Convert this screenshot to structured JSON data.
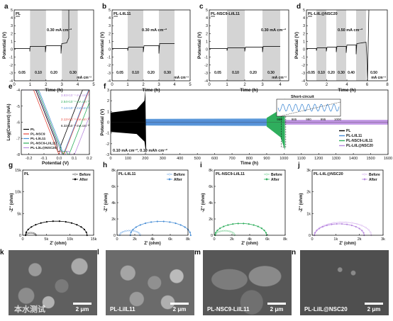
{
  "panels": {
    "a": {
      "letter": "a",
      "tag": "PL",
      "rate": "0.30 mA cm⁻²",
      "rates": [
        "0.05",
        "0.10",
        "0.20",
        "0.30"
      ],
      "unit": "mA cm⁻²",
      "xticks": [
        "0",
        "1",
        "2",
        "3",
        "4",
        "5"
      ]
    },
    "b": {
      "letter": "b",
      "tag": "PL-LiIL11",
      "rate": "0.30 mA cm⁻²",
      "rates": [
        "0.05",
        "0.10",
        "0.20",
        "0.30"
      ],
      "unit": "mA cm⁻²",
      "xticks": [
        "0",
        "1",
        "2",
        "3",
        "4",
        "5"
      ]
    },
    "c": {
      "letter": "c",
      "tag": "PL-NSC9-LiIL11",
      "rate": "0.30 mA cm⁻²",
      "rates": [
        "0.05",
        "0.10",
        "0.20",
        "0.30"
      ],
      "unit": "mA cm⁻²",
      "xticks": [
        "0",
        "1",
        "2",
        "3",
        "4"
      ]
    },
    "d": {
      "letter": "d",
      "tag": "PL-LiIL@NSC20",
      "rate": "0.50 mA cm⁻²",
      "rates": [
        "0.05",
        "0.10",
        "0.20",
        "0.30",
        "0.40",
        "0.50"
      ],
      "unit": "mA cm⁻²",
      "xticks": [
        "0",
        "2",
        "4",
        "6",
        "8"
      ]
    },
    "e": {
      "letter": "e",
      "legend": [
        "PL",
        "PL-NSC9",
        "PL-LiIL11",
        "PL-NSC9-LiIL11",
        "PL-LiIL@NSC20"
      ],
      "annotations": [
        "3.93×10⁻⁴ mA cm⁻²",
        "2.54×10⁻⁴ mA cm⁻²",
        "7.14×10⁻⁴ mA cm⁻²",
        "2.12×10⁻⁴ mA cm⁻²",
        "6.32×10⁻⁴ mA cm⁻²"
      ]
    },
    "f": {
      "letter": "f",
      "legend": [
        "PL",
        "PL-LiIL11",
        "PL-NSC9-LiIL11",
        "PL-LiIL@NSC20"
      ],
      "inset_title": "Short-circuit",
      "inset_xticks": [
        "980",
        "985",
        "990",
        "995",
        "1000"
      ],
      "note": "0.10 mA cm⁻², 0.10 mAh cm⁻²"
    },
    "g": {
      "letter": "g",
      "tag": "PL",
      "legend": [
        "Before",
        "After"
      ]
    },
    "h": {
      "letter": "h",
      "tag": "PL-LiIL11",
      "legend": [
        "Before",
        "After"
      ]
    },
    "i": {
      "letter": "i",
      "tag": "PL-NSC9-LiIL11",
      "legend": [
        "Before",
        "After"
      ]
    },
    "j": {
      "letter": "j",
      "tag": "PL-LiIL@NSC20",
      "legend": [
        "Before",
        "After"
      ]
    }
  },
  "sem": [
    {
      "letter": "k",
      "label": "",
      "scale": "2 μm"
    },
    {
      "letter": "l",
      "label": "PL-LiIL11",
      "scale": "2 μm"
    },
    {
      "letter": "m",
      "label": "PL-NSC9-LiIL11",
      "scale": "2 μm"
    },
    {
      "letter": "n",
      "label": "PL-LiIL@NSC20",
      "scale": "2 μm"
    }
  ],
  "watermark": "本水测试",
  "chart_data": [
    {
      "id": "a",
      "type": "line",
      "title": "PL",
      "xlabel": "Time (h)",
      "ylabel": "Potential (V)",
      "xlim": [
        0,
        5
      ],
      "ylim": [
        -4,
        5
      ],
      "yticks": [
        -4,
        -3,
        -2,
        -1,
        0,
        1,
        2,
        3,
        4,
        5
      ],
      "series": [
        {
          "name": "PL",
          "x": [
            0,
            1,
            1,
            2,
            2,
            2.9,
            3,
            3.3,
            3.4
          ],
          "y": [
            0.05,
            0.05,
            0.1,
            0.1,
            0.2,
            0.2,
            0.3,
            0.5,
            5
          ]
        }
      ],
      "annotations": [
        "0.30 mA cm⁻²",
        "0.05",
        "0.10",
        "0.20",
        "0.30",
        "mA cm⁻²"
      ]
    },
    {
      "id": "b",
      "type": "line",
      "title": "PL-LiIL11",
      "xlabel": "Time (h)",
      "ylabel": "Potential (V)",
      "xlim": [
        0,
        5
      ],
      "ylim": [
        -4,
        5
      ],
      "yticks": [
        -4,
        -3,
        -2,
        -1,
        0,
        1,
        2,
        3,
        4,
        5
      ],
      "series": [
        {
          "name": "PL-LiIL11",
          "x": [
            0,
            1,
            1,
            2,
            2,
            3,
            3,
            4
          ],
          "y": [
            0.05,
            0.05,
            0.1,
            0.1,
            0.2,
            0.2,
            0.3,
            0.3
          ]
        }
      ],
      "annotations": [
        "0.30 mA cm⁻²",
        "0.05",
        "0.10",
        "0.20",
        "0.30",
        "mA cm⁻²"
      ]
    },
    {
      "id": "c",
      "type": "line",
      "title": "PL-NSC9-LiIL11",
      "xlabel": "Time (h)",
      "ylabel": "Potential (V)",
      "xlim": [
        0,
        4.5
      ],
      "ylim": [
        -4,
        5
      ],
      "yticks": [
        -4,
        -3,
        -2,
        -1,
        0,
        1,
        2,
        3,
        4,
        5
      ],
      "series": [
        {
          "name": "PL-NSC9-LiIL11",
          "x": [
            0,
            1,
            1,
            2,
            2,
            3,
            3,
            4
          ],
          "y": [
            0.03,
            0.03,
            0.06,
            0.06,
            0.12,
            0.12,
            0.18,
            0.18
          ]
        }
      ],
      "annotations": [
        "0.30 mA cm⁻²",
        "0.05",
        "0.10",
        "0.20",
        "0.30",
        "mA cm⁻²"
      ]
    },
    {
      "id": "d",
      "type": "line",
      "title": "PL-LiIL@NSC20",
      "xlabel": "Time (h)",
      "ylabel": "Potential (V)",
      "xlim": [
        0,
        8
      ],
      "ylim": [
        -4,
        5
      ],
      "yticks": [
        -4,
        -3,
        -2,
        -1,
        0,
        1,
        2,
        3,
        4,
        5
      ],
      "series": [
        {
          "name": "PL-LiIL@NSC20",
          "x": [
            0,
            1,
            1,
            2,
            2,
            3,
            3,
            4,
            4,
            5,
            5,
            5.8
          ],
          "y": [
            0.05,
            0.05,
            0.1,
            0.1,
            0.2,
            0.2,
            0.3,
            0.3,
            0.4,
            0.4,
            0.5,
            0.5
          ]
        }
      ],
      "annotations": [
        "0.50 mA cm⁻²",
        "0.05",
        "0.10",
        "0.20",
        "0.30",
        "0.40",
        "0.50",
        "mA cm⁻²"
      ]
    },
    {
      "id": "e",
      "type": "line",
      "xlabel": "Potential (V)",
      "ylabel": "Log(Current) (mA)",
      "xlim": [
        -0.25,
        0.2
      ],
      "ylim": [
        -8,
        -4
      ],
      "xticks": [
        -0.2,
        -0.1,
        0.0,
        0.1,
        0.2
      ],
      "yticks": [
        -8,
        -7,
        -6,
        -5,
        -4
      ],
      "series": [
        {
          "name": "PL",
          "i0": -3.9
        },
        {
          "name": "PL-NSC9",
          "i0": -4.6
        },
        {
          "name": "PL-LiIL11",
          "i0": -4.15
        },
        {
          "name": "PL-NSC9-LiIL11",
          "i0": -4.7
        },
        {
          "name": "PL-LiIL@NSC20",
          "i0": -5.2
        }
      ]
    },
    {
      "id": "f",
      "type": "line",
      "xlabel": "Time (h)",
      "ylabel": "Potential (V)",
      "xlim": [
        0,
        1600
      ],
      "ylim": [
        -3,
        3
      ],
      "xticks": [
        0,
        100,
        200,
        300,
        400,
        500,
        600,
        700,
        800,
        900,
        1000,
        1100,
        1200,
        1300,
        1400,
        1500,
        1600
      ],
      "yticks": [
        -3,
        -2,
        -1,
        0,
        1,
        2,
        3
      ],
      "series": [
        {
          "name": "PL",
          "x_end": 200,
          "amp_start": 0.9,
          "amp_end": 2.8
        },
        {
          "name": "PL-LiIL11",
          "x_end": 1000,
          "amp": 0.3
        },
        {
          "name": "PL-NSC9-LiIL11",
          "x_end": 1000,
          "amp": 0.6
        },
        {
          "name": "PL-LiIL@NSC20",
          "x_end": 1600,
          "amp": 0.2
        }
      ]
    },
    {
      "id": "g",
      "type": "scatter",
      "title": "PL",
      "xlabel": "Z' (ohm)",
      "ylabel": "-Z'' (ohm)",
      "xlim": [
        0,
        15000
      ],
      "ylim": [
        0,
        15000
      ],
      "xticks": [
        "0",
        "5k",
        "10k",
        "15k"
      ],
      "yticks": [
        "0",
        "5k",
        "10k",
        "15k"
      ],
      "series": [
        {
          "name": "Before",
          "r0": 600,
          "r": 2200
        },
        {
          "name": "After",
          "r0": 600,
          "r": 13000
        }
      ]
    },
    {
      "id": "h",
      "type": "scatter",
      "title": "PL-LiIL11",
      "xlabel": "Z' (ohm)",
      "ylabel": "-Z'' (ohm)",
      "xlim": [
        0,
        8000
      ],
      "ylim": [
        0,
        8000
      ],
      "xticks": [
        "0",
        "2k",
        "4k",
        "6k",
        "8k"
      ],
      "yticks": [
        "0",
        "2k",
        "4k",
        "6k",
        "8k"
      ],
      "series": [
        {
          "name": "Before",
          "r0": 300,
          "r": 2300
        },
        {
          "name": "After",
          "r0": 1500,
          "r": 6800
        }
      ]
    },
    {
      "id": "i",
      "type": "scatter",
      "title": "PL-NSC9-LiIL11",
      "xlabel": "Z' (ohm)",
      "ylabel": "-Z'' (ohm)",
      "xlim": [
        0,
        8000
      ],
      "ylim": [
        0,
        8000
      ],
      "xticks": [
        "0",
        "2k",
        "4k",
        "6k",
        "8k"
      ],
      "yticks": [
        "0",
        "2k",
        "4k",
        "6k",
        "8k"
      ],
      "series": [
        {
          "name": "Before",
          "r0": 100,
          "r": 2200
        },
        {
          "name": "After",
          "r0": 100,
          "r": 5800
        }
      ]
    },
    {
      "id": "j",
      "type": "scatter",
      "title": "PL-LiIL@NSC20",
      "xlabel": "Z' (ohm)",
      "ylabel": "-Z'' (ohm)",
      "xlim": [
        0,
        3000
      ],
      "ylim": [
        0,
        3000
      ],
      "xticks": [
        "0",
        "1k",
        "2k",
        "3k"
      ],
      "yticks": [
        "0",
        "1k",
        "2k",
        "3k"
      ],
      "series": [
        {
          "name": "Before",
          "r0": 100,
          "r": 2400
        },
        {
          "name": "After",
          "r0": 100,
          "r": 2100
        }
      ]
    }
  ],
  "colors": {
    "pl": "#000000",
    "liil": "#4a8fd6",
    "nsc9liil": "#2fae5d",
    "lilnsc": "#b98ae0",
    "red": "#e6473b",
    "gray": "#d4d4d4"
  }
}
